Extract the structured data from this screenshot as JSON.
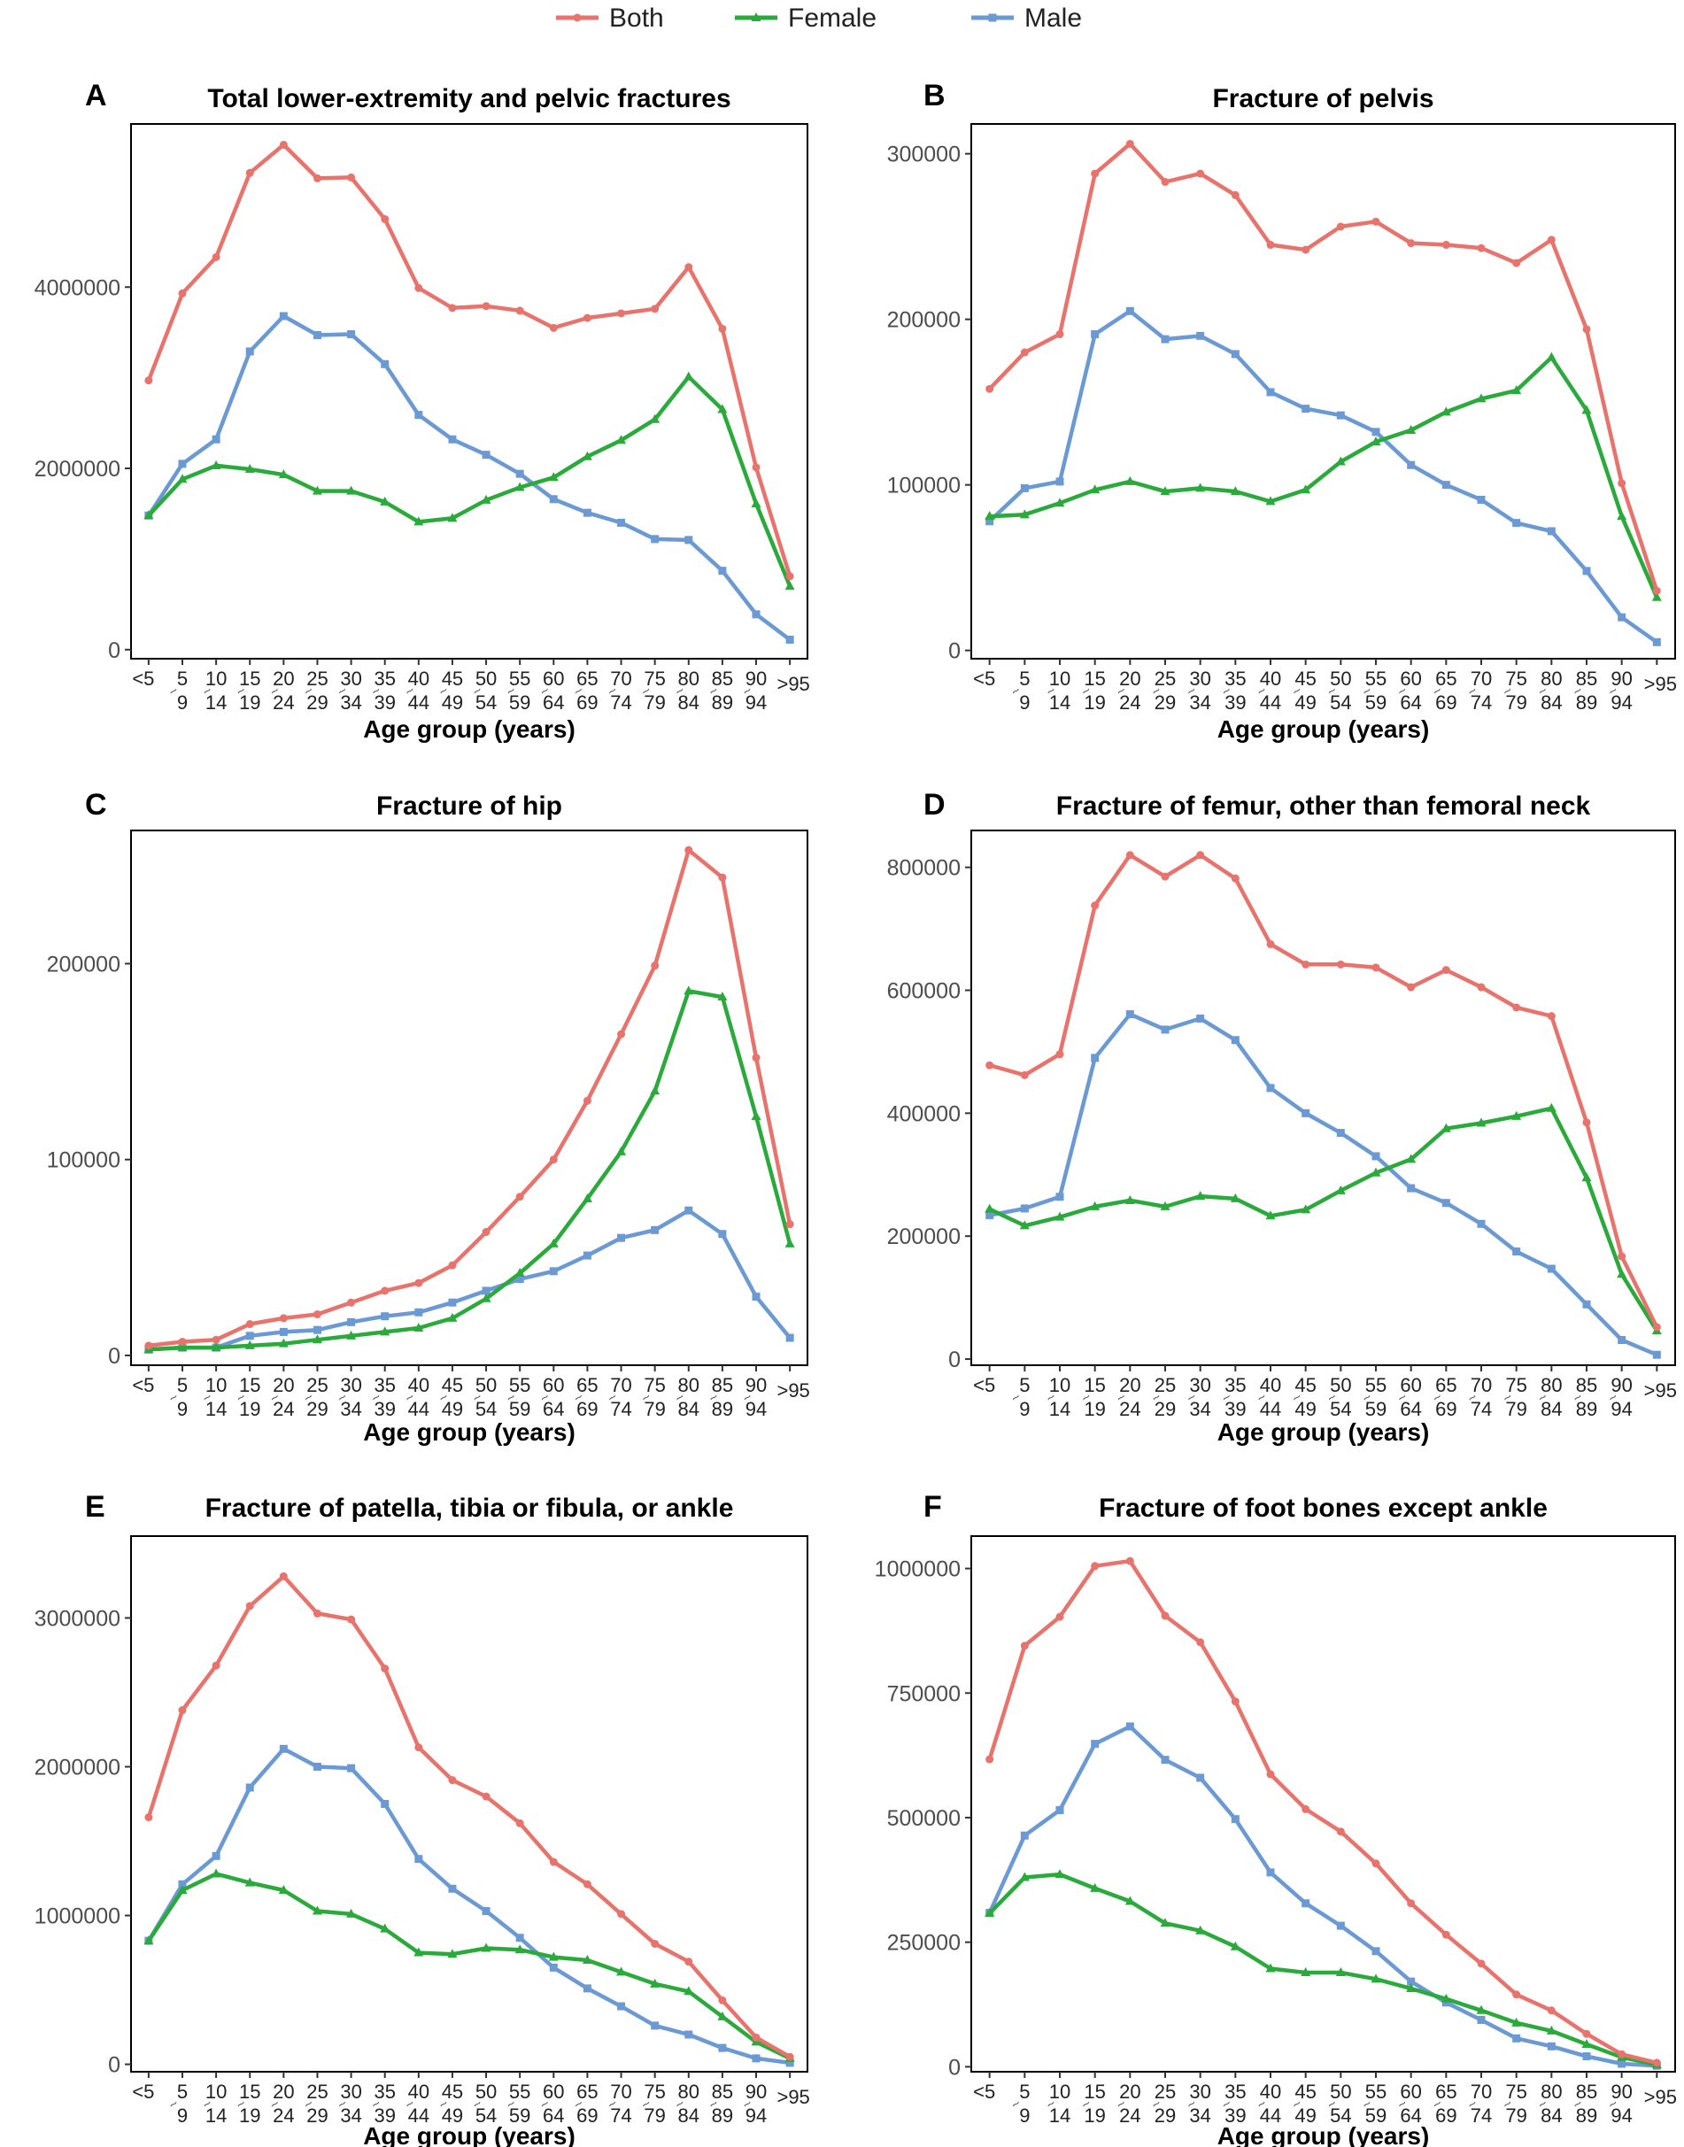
{
  "legend": {
    "items": [
      {
        "label": "Both",
        "color": "#E8736C",
        "marker": "circle"
      },
      {
        "label": "Female",
        "color": "#2BAA3C",
        "marker": "triangle"
      },
      {
        "label": "Male",
        "color": "#6A99D4",
        "marker": "square"
      }
    ]
  },
  "age_groups": [
    {
      "top": "<5",
      "bottom": ""
    },
    {
      "top": "5",
      "bottom": "9"
    },
    {
      "top": "10",
      "bottom": "14"
    },
    {
      "top": "15",
      "bottom": "19"
    },
    {
      "top": "20",
      "bottom": "24"
    },
    {
      "top": "25",
      "bottom": "29"
    },
    {
      "top": "30",
      "bottom": "34"
    },
    {
      "top": "35",
      "bottom": "39"
    },
    {
      "top": "40",
      "bottom": "44"
    },
    {
      "top": "45",
      "bottom": "49"
    },
    {
      "top": "50",
      "bottom": "54"
    },
    {
      "top": "55",
      "bottom": "59"
    },
    {
      "top": "60",
      "bottom": "64"
    },
    {
      "top": "65",
      "bottom": "69"
    },
    {
      "top": "70",
      "bottom": "74"
    },
    {
      "top": "75",
      "bottom": "79"
    },
    {
      "top": "80",
      "bottom": "84"
    },
    {
      "top": "85",
      "bottom": "89"
    },
    {
      "top": "90",
      "bottom": "94"
    },
    {
      "top": ">95",
      "bottom": ""
    }
  ],
  "chart_data": [
    {
      "panel": "A",
      "type": "line",
      "title": "Total lower-extremity and pelvic fractures",
      "xlabel": "Age group (years)",
      "ylabel": "",
      "ylim": [
        -100000,
        5800000
      ],
      "yticks": [
        0,
        2000000,
        4000000
      ],
      "ytick_labels": [
        "0",
        "2000000",
        "4000000"
      ],
      "series": [
        {
          "name": "Both",
          "values": [
            2970000,
            3930000,
            4330000,
            5260000,
            5570000,
            5200000,
            5210000,
            4750000,
            3990000,
            3770000,
            3790000,
            3740000,
            3550000,
            3660000,
            3710000,
            3760000,
            4220000,
            3540000,
            2010000,
            810000
          ]
        },
        {
          "name": "Female",
          "values": [
            1480000,
            1880000,
            2030000,
            1990000,
            1930000,
            1750000,
            1750000,
            1630000,
            1410000,
            1450000,
            1650000,
            1790000,
            1900000,
            2130000,
            2310000,
            2540000,
            3010000,
            2650000,
            1610000,
            700000
          ]
        },
        {
          "name": "Male",
          "values": [
            1480000,
            2050000,
            2320000,
            3290000,
            3680000,
            3470000,
            3480000,
            3150000,
            2590000,
            2320000,
            2150000,
            1940000,
            1660000,
            1510000,
            1400000,
            1220000,
            1210000,
            870000,
            390000,
            110000
          ]
        }
      ]
    },
    {
      "panel": "B",
      "type": "line",
      "title": "Fracture of pelvis",
      "xlabel": "Age group (years)",
      "ylabel": "",
      "ylim": [
        -5000,
        318000
      ],
      "yticks": [
        0,
        100000,
        200000,
        300000
      ],
      "ytick_labels": [
        "0",
        "100000",
        "200000",
        "300000"
      ],
      "series": [
        {
          "name": "Both",
          "values": [
            158000,
            180000,
            191000,
            288000,
            306000,
            283000,
            288000,
            275000,
            245000,
            242000,
            256000,
            259000,
            246000,
            245000,
            243000,
            234000,
            248000,
            194000,
            101000,
            36000
          ]
        },
        {
          "name": "Female",
          "values": [
            81000,
            82000,
            89000,
            97000,
            102000,
            96000,
            98000,
            96000,
            90000,
            97000,
            114000,
            126000,
            133000,
            144000,
            152000,
            157000,
            177000,
            145000,
            81000,
            32000
          ]
        },
        {
          "name": "Male",
          "values": [
            78000,
            98000,
            102000,
            191000,
            205000,
            188000,
            190000,
            179000,
            156000,
            146000,
            142000,
            132000,
            112000,
            100000,
            91000,
            77000,
            72000,
            48000,
            20000,
            5000
          ]
        }
      ]
    },
    {
      "panel": "C",
      "type": "line",
      "title": "Fracture of hip",
      "xlabel": "Age group (years)",
      "ylabel": "",
      "ylim": [
        -5000,
        268000
      ],
      "yticks": [
        0,
        100000,
        200000
      ],
      "ytick_labels": [
        "0",
        "100000",
        "200000"
      ],
      "series": [
        {
          "name": "Both",
          "values": [
            5000,
            7000,
            8000,
            16000,
            19000,
            21000,
            27000,
            33000,
            37000,
            46000,
            63000,
            81000,
            100000,
            130000,
            164000,
            199000,
            258000,
            244000,
            152000,
            67000
          ]
        },
        {
          "name": "Female",
          "values": [
            3000,
            4000,
            4000,
            5000,
            6000,
            8000,
            10000,
            12000,
            14000,
            19000,
            29000,
            42000,
            57000,
            80000,
            104000,
            135000,
            186000,
            183000,
            122000,
            57000
          ]
        },
        {
          "name": "Male",
          "values": [
            3000,
            4000,
            4000,
            10000,
            12000,
            13000,
            17000,
            20000,
            22000,
            27000,
            33000,
            39000,
            43000,
            51000,
            60000,
            64000,
            74000,
            62000,
            30000,
            9000
          ]
        }
      ]
    },
    {
      "panel": "D",
      "type": "line",
      "title": "Fracture of femur, other than femoral neck",
      "xlabel": "Age group (years)",
      "ylabel": "",
      "ylim": [
        -10000,
        860000
      ],
      "yticks": [
        0,
        200000,
        400000,
        600000,
        800000
      ],
      "ytick_labels": [
        "0",
        "200000",
        "400000",
        "600000",
        "800000"
      ],
      "series": [
        {
          "name": "Both",
          "values": [
            478000,
            462000,
            496000,
            738000,
            820000,
            785000,
            820000,
            782000,
            675000,
            642000,
            642000,
            637000,
            605000,
            633000,
            605000,
            572000,
            558000,
            385000,
            167000,
            52000
          ]
        },
        {
          "name": "Female",
          "values": [
            244000,
            217000,
            231000,
            248000,
            258000,
            248000,
            265000,
            261000,
            233000,
            243000,
            274000,
            303000,
            325000,
            375000,
            384000,
            395000,
            408000,
            295000,
            138000,
            46000
          ]
        },
        {
          "name": "Male",
          "values": [
            234000,
            245000,
            264000,
            490000,
            561000,
            536000,
            554000,
            519000,
            441000,
            400000,
            368000,
            330000,
            278000,
            254000,
            220000,
            175000,
            147000,
            89000,
            31000,
            7000
          ]
        }
      ]
    },
    {
      "panel": "E",
      "type": "line",
      "title": "Fracture of patella, tibia or fibula, or ankle",
      "xlabel": "Age group (years)",
      "ylabel": "",
      "ylim": [
        -50000,
        3550000
      ],
      "yticks": [
        0,
        1000000,
        2000000,
        3000000
      ],
      "ytick_labels": [
        "0",
        "1000000",
        "2000000",
        "3000000"
      ],
      "series": [
        {
          "name": "Both",
          "values": [
            1660000,
            2380000,
            2680000,
            3080000,
            3280000,
            3030000,
            2990000,
            2660000,
            2130000,
            1910000,
            1800000,
            1620000,
            1360000,
            1210000,
            1010000,
            810000,
            690000,
            430000,
            180000,
            50000
          ]
        },
        {
          "name": "Female",
          "values": [
            830000,
            1170000,
            1280000,
            1220000,
            1170000,
            1030000,
            1010000,
            910000,
            750000,
            740000,
            780000,
            770000,
            720000,
            700000,
            620000,
            540000,
            490000,
            320000,
            150000,
            40000
          ]
        },
        {
          "name": "Male",
          "values": [
            830000,
            1210000,
            1400000,
            1860000,
            2120000,
            2000000,
            1990000,
            1750000,
            1380000,
            1180000,
            1030000,
            850000,
            650000,
            510000,
            390000,
            260000,
            200000,
            110000,
            40000,
            10000
          ]
        }
      ]
    },
    {
      "panel": "F",
      "type": "line",
      "title": "Fracture of foot bones except ankle",
      "xlabel": "Age group (years)",
      "ylabel": "",
      "ylim": [
        -10000,
        1065000
      ],
      "yticks": [
        0,
        250000,
        500000,
        750000,
        1000000
      ],
      "ytick_labels": [
        "0",
        "250000",
        "500000",
        "750000",
        "1000000"
      ],
      "series": [
        {
          "name": "Both",
          "values": [
            617000,
            845000,
            903000,
            1005000,
            1015000,
            905000,
            852000,
            733000,
            587000,
            517000,
            472000,
            408000,
            328000,
            265000,
            207000,
            145000,
            113000,
            66000,
            25000,
            8000
          ]
        },
        {
          "name": "Female",
          "values": [
            308000,
            380000,
            386000,
            358000,
            332000,
            288000,
            273000,
            241000,
            197000,
            189000,
            189000,
            176000,
            157000,
            136000,
            113000,
            88000,
            72000,
            45000,
            19000,
            4000
          ]
        },
        {
          "name": "Male",
          "values": [
            309000,
            464000,
            515000,
            648000,
            683000,
            616000,
            580000,
            497000,
            390000,
            328000,
            283000,
            232000,
            171000,
            129000,
            94000,
            57000,
            41000,
            21000,
            6000,
            2000
          ]
        }
      ]
    }
  ]
}
